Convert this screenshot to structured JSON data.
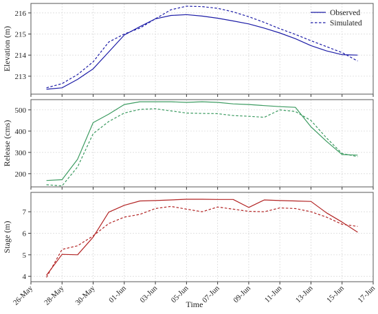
{
  "chart_data": {
    "type": "line",
    "xlabel": "Time",
    "x_tick_labels": [
      "26-May",
      "28-May",
      "30-May",
      "01-Jun",
      "03-Jun",
      "05-Jun",
      "07-Jun",
      "09-Jun",
      "11-Jun",
      "13-Jun",
      "15-Jun",
      "17-Jun"
    ],
    "x_tick_dates": [
      "2020-05-26",
      "2020-05-28",
      "2020-05-30",
      "2020-06-01",
      "2020-06-03",
      "2020-06-05",
      "2020-06-07",
      "2020-06-09",
      "2020-06-11",
      "2020-06-13",
      "2020-06-15",
      "2020-06-17"
    ],
    "xlim": [
      "2020-05-26",
      "2020-06-17"
    ],
    "legend": {
      "placement": "top-right",
      "entries": [
        "Observed",
        "Simulated"
      ]
    },
    "grid": true,
    "panels": [
      {
        "ylabel": "Elevation (m)",
        "ylim": [
          212.15,
          216.45
        ],
        "yticks": [
          213,
          214,
          215,
          216
        ],
        "color": "#1a1aa6",
        "series": [
          {
            "name": "Observed",
            "dash": "solid",
            "x": [
              "2020-05-27",
              "2020-05-28",
              "2020-05-29",
              "2020-05-30",
              "2020-05-31",
              "2020-06-01",
              "2020-06-02",
              "2020-06-03",
              "2020-06-04",
              "2020-06-05",
              "2020-06-06",
              "2020-06-07",
              "2020-06-08",
              "2020-06-09",
              "2020-06-10",
              "2020-06-11",
              "2020-06-12",
              "2020-06-13",
              "2020-06-14",
              "2020-06-15",
              "2020-06-16"
            ],
            "y": [
              212.38,
              212.45,
              212.85,
              213.35,
              214.15,
              214.95,
              215.35,
              215.72,
              215.88,
              215.92,
              215.85,
              215.75,
              215.62,
              215.48,
              215.28,
              215.05,
              214.78,
              214.45,
              214.2,
              214.02,
              214.0
            ]
          },
          {
            "name": "Simulated",
            "dash": "dashed",
            "x": [
              "2020-05-27",
              "2020-05-28",
              "2020-05-29",
              "2020-05-30",
              "2020-05-31",
              "2020-06-01",
              "2020-06-02",
              "2020-06-03",
              "2020-06-04",
              "2020-06-05",
              "2020-06-06",
              "2020-06-07",
              "2020-06-08",
              "2020-06-09",
              "2020-06-10",
              "2020-06-11",
              "2020-06-12",
              "2020-06-13",
              "2020-06-14",
              "2020-06-15",
              "2020-06-16"
            ],
            "y": [
              212.45,
              212.65,
              213.08,
              213.68,
              214.62,
              215.0,
              215.28,
              215.72,
              216.15,
              216.32,
              216.3,
              216.22,
              216.05,
              215.82,
              215.55,
              215.25,
              214.98,
              214.68,
              214.4,
              214.12,
              213.72
            ]
          }
        ]
      },
      {
        "ylabel": "Release (cms)",
        "ylim": [
          138,
          548
        ],
        "yticks": [
          200,
          300,
          400,
          500
        ],
        "color": "#3a9a5f",
        "series": [
          {
            "name": "Observed",
            "dash": "solid",
            "x": [
              "2020-05-27",
              "2020-05-28",
              "2020-05-29",
              "2020-05-30",
              "2020-05-31",
              "2020-06-01",
              "2020-06-02",
              "2020-06-03",
              "2020-06-04",
              "2020-06-05",
              "2020-06-06",
              "2020-06-07",
              "2020-06-08",
              "2020-06-09",
              "2020-06-10",
              "2020-06-11",
              "2020-06-12",
              "2020-06-13",
              "2020-06-14",
              "2020-06-15",
              "2020-06-16"
            ],
            "y": [
              168,
              172,
              268,
              440,
              480,
              525,
              538,
              538,
              538,
              535,
              538,
              535,
              528,
              525,
              520,
              515,
              512,
              420,
              352,
              290,
              287
            ]
          },
          {
            "name": "Simulated",
            "dash": "dashed",
            "x": [
              "2020-05-27",
              "2020-05-28",
              "2020-05-29",
              "2020-05-30",
              "2020-05-31",
              "2020-06-01",
              "2020-06-02",
              "2020-06-03",
              "2020-06-04",
              "2020-06-05",
              "2020-06-06",
              "2020-06-07",
              "2020-06-08",
              "2020-06-09",
              "2020-06-10",
              "2020-06-11",
              "2020-06-12",
              "2020-06-13",
              "2020-06-14",
              "2020-06-15",
              "2020-06-16"
            ],
            "y": [
              148,
              143,
              232,
              388,
              445,
              485,
              502,
              505,
              495,
              485,
              483,
              482,
              473,
              470,
              465,
              500,
              492,
              450,
              368,
              295,
              280
            ]
          }
        ]
      },
      {
        "ylabel": "Stage (m)",
        "ylim": [
          3.75,
          7.9
        ],
        "yticks": [
          4,
          5,
          6,
          7
        ],
        "color": "#b22222",
        "series": [
          {
            "name": "Observed",
            "dash": "solid",
            "x": [
              "2020-05-27",
              "2020-05-28",
              "2020-05-29",
              "2020-05-30",
              "2020-05-31",
              "2020-06-01",
              "2020-06-02",
              "2020-06-03",
              "2020-06-04",
              "2020-06-05",
              "2020-06-06",
              "2020-06-07",
              "2020-06-08",
              "2020-06-09",
              "2020-06-10",
              "2020-06-11",
              "2020-06-12",
              "2020-06-13",
              "2020-06-14",
              "2020-06-15",
              "2020-06-16"
            ],
            "y": [
              4.05,
              5.02,
              5.0,
              5.82,
              6.98,
              7.3,
              7.5,
              7.52,
              7.55,
              7.58,
              7.58,
              7.57,
              7.57,
              7.2,
              7.55,
              7.52,
              7.5,
              7.48,
              6.95,
              6.52,
              6.05
            ]
          },
          {
            "name": "Simulated",
            "dash": "dashed",
            "x": [
              "2020-05-27",
              "2020-05-28",
              "2020-05-29",
              "2020-05-30",
              "2020-05-31",
              "2020-06-01",
              "2020-06-02",
              "2020-06-03",
              "2020-06-04",
              "2020-06-05",
              "2020-06-06",
              "2020-06-07",
              "2020-06-08",
              "2020-06-09",
              "2020-06-10",
              "2020-06-11",
              "2020-06-12",
              "2020-06-13",
              "2020-06-14",
              "2020-06-15",
              "2020-06-16"
            ],
            "y": [
              3.95,
              5.25,
              5.42,
              5.88,
              6.45,
              6.75,
              6.88,
              7.15,
              7.25,
              7.12,
              7.0,
              7.22,
              7.12,
              7.02,
              7.0,
              7.18,
              7.15,
              7.0,
              6.75,
              6.42,
              6.32
            ]
          }
        ]
      }
    ]
  }
}
